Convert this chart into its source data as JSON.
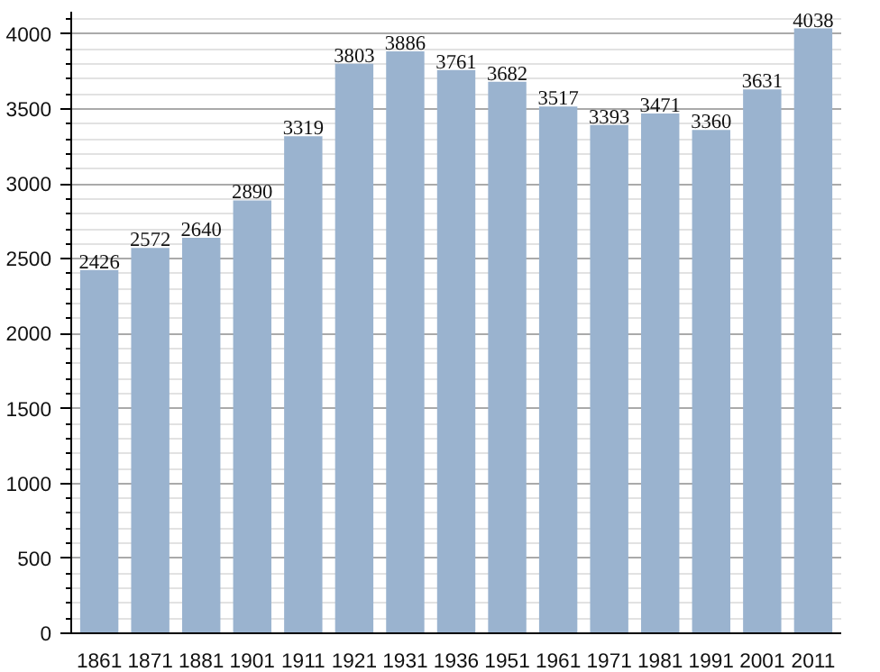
{
  "chart_data": {
    "type": "bar",
    "categories": [
      "1861",
      "1871",
      "1881",
      "1901",
      "1911",
      "1921",
      "1931",
      "1936",
      "1951",
      "1961",
      "1971",
      "1981",
      "1991",
      "2001",
      "2011"
    ],
    "values": [
      2426,
      2572,
      2640,
      2890,
      3319,
      3803,
      3886,
      3761,
      3682,
      3517,
      3393,
      3471,
      3360,
      3631,
      4038
    ],
    "color": "#9ab3cf",
    "ylim": [
      0,
      4150
    ],
    "yticks": [
      0,
      500,
      1000,
      1500,
      2000,
      2500,
      3000,
      3500,
      4000
    ],
    "grid": "y",
    "data_labels": true
  }
}
